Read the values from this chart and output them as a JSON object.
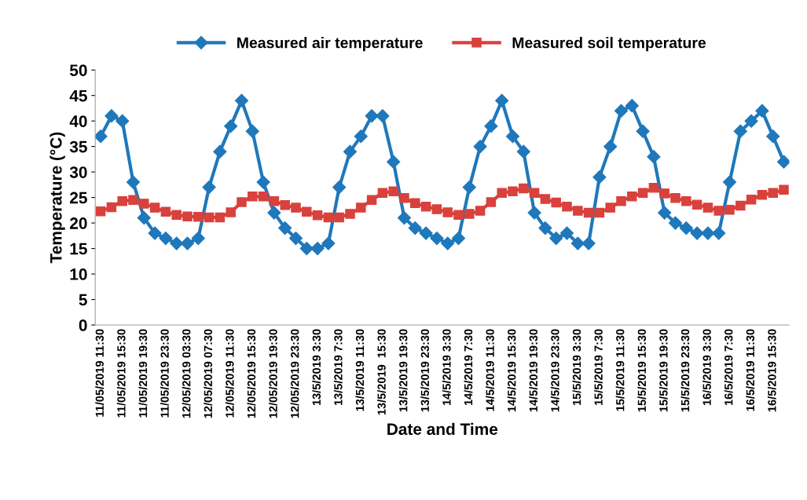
{
  "chart_data": {
    "type": "line",
    "xlabel": "Date and Time",
    "ylabel": "Temperature (°C)",
    "categories": [
      "11/05/2019 11:30",
      null,
      "11/05/2019 15:30",
      null,
      "11/05/2019 19:30",
      null,
      "11/05/2019 23:30",
      null,
      "12/05/2019 03:30",
      null,
      "12/05/2019 07:30",
      null,
      "12/05/2019 11:30",
      null,
      "12/05/2019 15:30",
      null,
      "12/05/2019 19:30",
      null,
      "12/05/2019 23:30",
      null,
      "13/5/2019 3:30",
      null,
      "13/5/2019 7:30",
      null,
      "13/5/2019 11:30",
      null,
      "13/5/2019  15:30",
      null,
      "13/5/2019 19:30",
      null,
      "13/5/2019 23:30",
      null,
      "14/5/2019 3:30",
      null,
      "14/5/2019 7:30",
      null,
      "14/5/2019 11:30",
      null,
      "14/5/2019 15:30",
      null,
      "14/5/2019 19:30",
      null,
      "14/5/2019 23:30",
      null,
      "15/5/2019 3:30",
      null,
      "15/5/2019 7:30",
      null,
      "15/5/2019 11:30",
      null,
      "15/5/2019 15:30",
      null,
      "15/5/2019 19:30",
      null,
      "15/5/2019 23:30",
      null,
      "16/5/2019 3:30",
      null,
      "16/5/2019 7:30",
      null,
      "16/5/2019 11:30",
      null,
      "16/5/2019 15:30",
      null
    ],
    "series": [
      {
        "name": "Measured air temperature",
        "color": "#1f78bb",
        "marker": "diamond",
        "values": [
          37,
          41,
          40,
          28,
          21,
          18,
          17,
          16,
          16,
          17,
          27,
          34,
          39,
          44,
          38,
          28,
          22,
          19,
          17,
          15,
          15,
          16,
          27,
          34,
          37,
          41,
          41,
          32,
          21,
          19,
          18,
          17,
          16,
          17,
          27,
          35,
          39,
          44,
          37,
          34,
          22,
          19,
          17,
          18,
          16,
          16,
          29,
          35,
          42,
          43,
          38,
          33,
          22,
          20,
          19,
          18,
          18,
          18,
          28,
          38,
          40,
          42,
          37,
          32
        ]
      },
      {
        "name": "Measured soil temperature",
        "color": "#d9413c",
        "marker": "square",
        "values": [
          22.3,
          23.1,
          24.3,
          24.5,
          23.8,
          23.0,
          22.2,
          21.6,
          21.3,
          21.2,
          21.1,
          21.1,
          22.1,
          24.1,
          25.2,
          25.2,
          24.3,
          23.5,
          23.0,
          22.2,
          21.5,
          21.1,
          21.1,
          21.8,
          23.0,
          24.5,
          25.9,
          26.2,
          24.9,
          23.9,
          23.2,
          22.7,
          22.1,
          21.6,
          21.8,
          22.4,
          24.1,
          25.9,
          26.2,
          26.8,
          25.9,
          24.7,
          24.0,
          23.2,
          22.4,
          22.0,
          22.0,
          23.0,
          24.3,
          25.2,
          25.9,
          26.9,
          25.8,
          24.9,
          24.3,
          23.6,
          23.0,
          22.4,
          22.6,
          23.4,
          24.6,
          25.5,
          25.9,
          26.5
        ]
      }
    ],
    "ylim": [
      0,
      50
    ],
    "yticks": [
      0,
      5,
      10,
      15,
      20,
      25,
      30,
      35,
      40,
      45,
      50
    ],
    "grid": false,
    "legend": "top",
    "line_style": "solid"
  }
}
